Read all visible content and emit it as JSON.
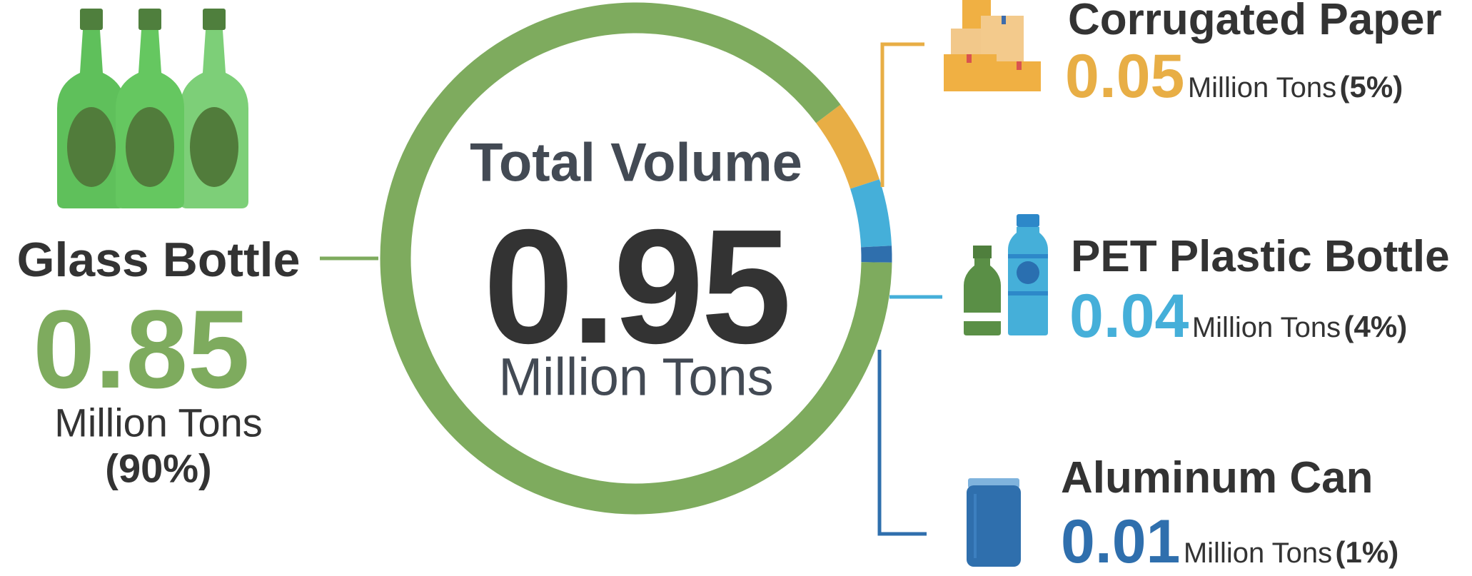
{
  "chart_data": {
    "type": "pie",
    "title": "Total Volume",
    "total": 0.95,
    "total_label": "0.95",
    "unit": "Million Tons",
    "series": [
      {
        "name": "Glass Bottle",
        "value": 0.85,
        "value_label": "0.85",
        "percent": 90,
        "percent_label": "(90%)",
        "color": "#7eab5e"
      },
      {
        "name": "Corrugated Paper",
        "value": 0.05,
        "value_label": "0.05",
        "percent": 5,
        "percent_label": "(5%)",
        "color": "#e8ae45"
      },
      {
        "name": "PET Plastic Bottle",
        "value": 0.04,
        "value_label": "0.04",
        "percent": 4,
        "percent_label": "(4%)",
        "color": "#45afd9"
      },
      {
        "name": "Aluminum Can",
        "value": 0.01,
        "value_label": "0.01",
        "percent": 1,
        "percent_label": "(1%)",
        "color": "#2f6fad"
      }
    ]
  },
  "icons": {
    "glass": "glass-bottles-icon",
    "paper": "cardboard-boxes-icon",
    "pet": "plastic-bottles-icon",
    "can": "aluminum-can-icon"
  }
}
